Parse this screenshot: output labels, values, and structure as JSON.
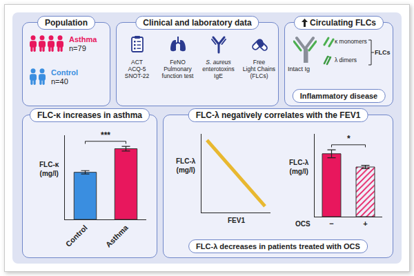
{
  "population": {
    "title": "Population",
    "groups": [
      {
        "name": "Asthma",
        "n_label": "n=79",
        "color": "#e8175d"
      },
      {
        "name": "Control",
        "n_label": "n=40",
        "color": "#3a8ee0"
      }
    ]
  },
  "clinical": {
    "title": "Clinical and laboratory data",
    "items": [
      {
        "lines": [
          "ACT",
          "ACQ-5",
          "SNOT-22"
        ]
      },
      {
        "lines": [
          "FeNO",
          "Pulmonary",
          "function test"
        ]
      },
      {
        "lines": [
          "S. aureus",
          "enterotoxins",
          "IgE"
        ]
      },
      {
        "lines": [
          "Free",
          "Light Chains",
          "(FLCs)"
        ]
      }
    ]
  },
  "flcs": {
    "title": "Circulating FLCs",
    "intact": "Intact Ig",
    "kappa": "κ monomers",
    "lambda": "λ dimers",
    "group": "FLCs",
    "disease": "Inflammatory disease"
  },
  "chart_data": [
    {
      "type": "bar",
      "title": "FLC-κ increases in asthma",
      "y_label": [
        "FLC-κ",
        "(mg/l)"
      ],
      "categories": [
        "Control",
        "Asthma"
      ],
      "values": [
        14,
        21
      ],
      "errors": [
        0.5,
        0.7
      ],
      "colors": [
        "#3a8ee0",
        "#e8175d"
      ],
      "ylim": [
        0,
        25
      ],
      "tick_labels": "x",
      "significance": "***"
    },
    {
      "type": "line",
      "title": "FLC-λ negatively correlates with the FEV1",
      "x_label": "FEV1",
      "y_label": [
        "FLC-λ",
        "(mg/l)"
      ],
      "x": [
        8,
        92
      ],
      "values": [
        92,
        8
      ],
      "xlim": [
        0,
        100
      ],
      "ylim": [
        0,
        100
      ],
      "color": "#e8b830",
      "tick_labels": false
    },
    {
      "type": "bar",
      "title": "FLC-λ decreases in patients treated with OCS",
      "x_label": "OCS",
      "y_label": [
        "FLC-λ",
        "(mg/l)"
      ],
      "categories": [
        "−",
        "+"
      ],
      "values": [
        19,
        15
      ],
      "errors": [
        1.2,
        0.5
      ],
      "colors": [
        "#e8175d",
        "#e8175d"
      ],
      "ylim": [
        0,
        25
      ],
      "tick_labels": "x",
      "significance": "*"
    }
  ]
}
